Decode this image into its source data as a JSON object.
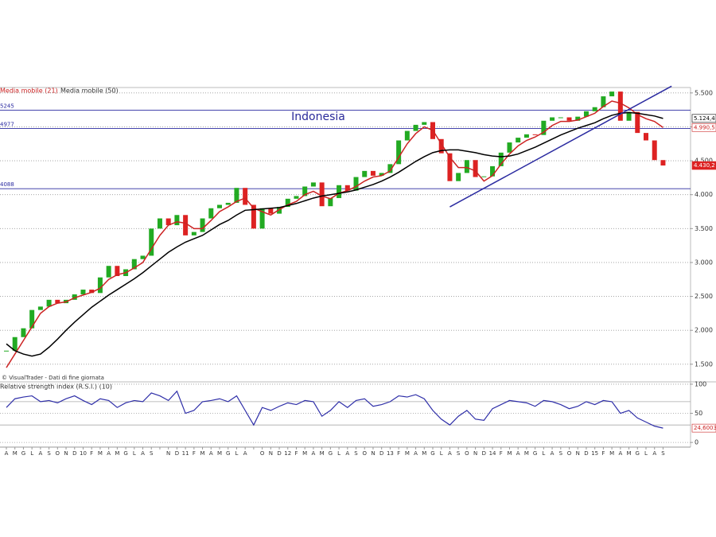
{
  "chart_data": [
    {
      "type": "candlestick",
      "title": "Indonesia",
      "note": "© VisualTrader - Dati di fine giornata",
      "up_color": "#22aa22",
      "down_color": "#dd2222",
      "values": [
        1700,
        1900,
        2030,
        2300,
        2350,
        2450,
        2400,
        2450,
        2530,
        2600,
        2550,
        2780,
        2950,
        2800,
        2900,
        3050,
        3100,
        3500,
        3650,
        3550,
        3700,
        3400,
        3450,
        3650,
        3800,
        3850,
        3880,
        4100,
        3850,
        3500,
        3800,
        3720,
        3820,
        3940,
        3980,
        4120,
        4180,
        3830,
        3950,
        4140,
        4060,
        4260,
        4350,
        4280,
        4320,
        4450,
        4800,
        4940,
        5030,
        5070,
        4820,
        4610,
        4200,
        4320,
        4510,
        4260,
        4270,
        4420,
        4620,
        4770,
        4840,
        4890,
        4880,
        5090,
        5140,
        5140,
        5090,
        5150,
        5230,
        5290,
        5450,
        5520,
        5090,
        5220,
        4910,
        4800,
        4510,
        4430.2
      ],
      "last_label": "4.430,2",
      "series": [
        {
          "name": "Media mobile (21)",
          "color": "#cc2222",
          "last_label": "4.990,5",
          "values": [
            1450,
            1650,
            1850,
            2050,
            2250,
            2350,
            2400,
            2420,
            2480,
            2520,
            2560,
            2620,
            2750,
            2820,
            2850,
            2920,
            3000,
            3200,
            3400,
            3550,
            3600,
            3580,
            3500,
            3500,
            3620,
            3750,
            3820,
            3900,
            3950,
            3800,
            3750,
            3700,
            3780,
            3850,
            3900,
            4000,
            4050,
            3980,
            3940,
            4020,
            4060,
            4120,
            4200,
            4260,
            4280,
            4350,
            4550,
            4750,
            4900,
            5000,
            4950,
            4750,
            4550,
            4400,
            4400,
            4350,
            4200,
            4280,
            4450,
            4600,
            4720,
            4800,
            4850,
            4920,
            5020,
            5080,
            5080,
            5100,
            5150,
            5200,
            5300,
            5380,
            5350,
            5280,
            5180,
            5120,
            5080,
            4990.5
          ]
        },
        {
          "name": "Media mobile (50)",
          "color": "#000000",
          "last_label": "5.124,4",
          "values": [
            1800,
            1700,
            1650,
            1620,
            1650,
            1750,
            1870,
            2000,
            2120,
            2230,
            2340,
            2430,
            2520,
            2600,
            2680,
            2760,
            2850,
            2950,
            3050,
            3150,
            3230,
            3300,
            3350,
            3400,
            3480,
            3560,
            3620,
            3700,
            3770,
            3780,
            3790,
            3800,
            3810,
            3840,
            3870,
            3910,
            3950,
            3980,
            4000,
            4020,
            4040,
            4070,
            4110,
            4150,
            4200,
            4260,
            4330,
            4410,
            4490,
            4560,
            4620,
            4650,
            4660,
            4660,
            4640,
            4620,
            4590,
            4570,
            4560,
            4570,
            4600,
            4650,
            4700,
            4760,
            4820,
            4880,
            4930,
            4980,
            5020,
            5060,
            5120,
            5170,
            5200,
            5210,
            5200,
            5180,
            5160,
            5124.4
          ]
        }
      ],
      "levels": [
        5245,
        4977,
        4088
      ],
      "level_color": "#2a2aa0",
      "trendline": {
        "color": "#2a2aa0",
        "from": {
          "x": 52,
          "y": 3820
        },
        "to": {
          "x": 78,
          "y": 5600
        }
      },
      "ylim": [
        1240,
        5580
      ],
      "yticks": [
        {
          "value": 1500,
          "label": "1.500"
        },
        {
          "value": 2000,
          "label": "2.000"
        },
        {
          "value": 2500,
          "label": "2.500"
        },
        {
          "value": 3000,
          "label": "3.000"
        },
        {
          "value": 3500,
          "label": "3.500"
        },
        {
          "value": 4000,
          "label": "4.000"
        },
        {
          "value": 4500,
          "label": "4.500"
        },
        {
          "value": 5000,
          "label": "5.000"
        },
        {
          "value": 5500,
          "label": "5.500"
        }
      ],
      "grid": true
    },
    {
      "type": "line",
      "title": "Relative strength index (R.S.I.) (10)",
      "categories": [
        "A",
        "M",
        "G",
        "L",
        "A",
        "S",
        "O",
        "N",
        "D",
        "10",
        "F",
        "M",
        "A",
        "M",
        "G",
        "L",
        "A",
        "S",
        null,
        "N",
        "D",
        "11",
        "F",
        "M",
        "A",
        "M",
        "G",
        "L",
        "A",
        null,
        "O",
        "N",
        "D",
        "12",
        "F",
        "M",
        "A",
        "M",
        "G",
        "L",
        "A",
        "S",
        "O",
        "N",
        "D",
        "13",
        "F",
        "M",
        "A",
        "M",
        "G",
        "L",
        "A",
        "S",
        "O",
        "N",
        "D",
        "14",
        "F",
        "M",
        "A",
        "M",
        "G",
        "L",
        "A",
        "S",
        "O",
        "N",
        "D",
        "15",
        "F",
        "M",
        "A",
        "M",
        "G",
        "L",
        "A",
        "S"
      ],
      "series": [
        {
          "color": "#2e2ea8",
          "values": [
            60,
            75,
            78,
            80,
            70,
            72,
            68,
            75,
            80,
            72,
            65,
            75,
            72,
            60,
            68,
            72,
            70,
            85,
            80,
            72,
            88,
            50,
            55,
            70,
            72,
            75,
            70,
            80,
            55,
            30,
            60,
            55,
            62,
            68,
            65,
            72,
            70,
            45,
            55,
            70,
            60,
            72,
            75,
            62,
            65,
            70,
            80,
            78,
            82,
            75,
            55,
            40,
            30,
            45,
            55,
            40,
            38,
            58,
            65,
            72,
            70,
            68,
            62,
            72,
            70,
            65,
            58,
            62,
            70,
            65,
            72,
            70,
            50,
            55,
            42,
            35,
            28,
            24.6003
          ],
          "last_label": "24,6003"
        }
      ],
      "levels": [
        30,
        70
      ],
      "ylim": [
        -8,
        104
      ],
      "yticks": [
        0,
        50,
        100
      ],
      "grid": true
    }
  ]
}
